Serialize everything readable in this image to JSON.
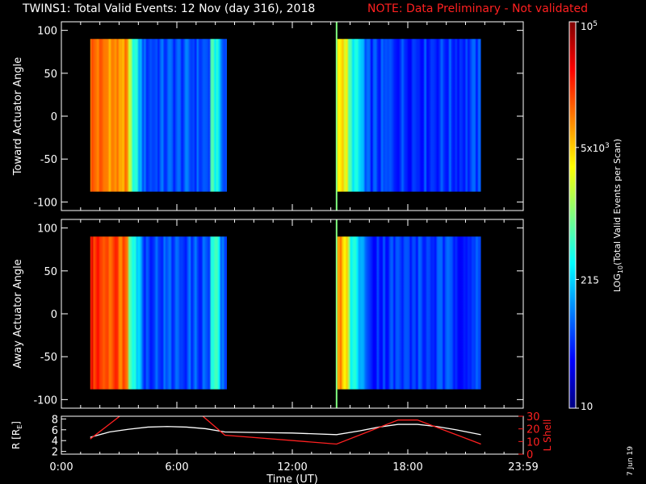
{
  "header": {
    "title": "TWINS1: Total Valid Events: 12 Nov (day 316), 2018",
    "note": "NOTE: Data Preliminary - Not validated"
  },
  "colors": {
    "background": "#000000",
    "axes": "#ffffff",
    "note": "#ff2020",
    "lshell": "#ff2020",
    "r_earth": "#ffffff",
    "marker": "#80ff80"
  },
  "date_stamp": "7 Jun 19",
  "chart_data": [
    {
      "type": "heatmap",
      "name": "toward",
      "ylabel": "Toward Actuator Angle",
      "ylim": [
        -110,
        110
      ],
      "yticks": [
        -100,
        -50,
        0,
        50,
        100
      ],
      "xlim": [
        0,
        24
      ],
      "scan_blocks": [
        {
          "x_start": 1.5,
          "x_end": 8.6,
          "y_range": [
            -88,
            90
          ]
        },
        {
          "x_start": 14.3,
          "x_end": 21.8,
          "y_range": [
            -88,
            90
          ]
        }
      ],
      "marker_time": 14.3
    },
    {
      "type": "heatmap",
      "name": "away",
      "ylabel": "Away Actuator Angle",
      "ylim": [
        -110,
        110
      ],
      "yticks": [
        -100,
        -50,
        0,
        50,
        100
      ],
      "xlim": [
        0,
        24
      ],
      "scan_blocks": [
        {
          "x_start": 1.5,
          "x_end": 8.6,
          "y_range": [
            -88,
            90
          ]
        },
        {
          "x_start": 14.3,
          "x_end": 21.8,
          "y_range": [
            -88,
            90
          ]
        }
      ],
      "marker_time": 14.3
    },
    {
      "type": "line",
      "name": "orbit",
      "xlabel": "Time (UT)",
      "xlim": [
        0,
        24
      ],
      "xticks": [
        0,
        6,
        12,
        18,
        24
      ],
      "xtick_labels": [
        "0:00",
        "6:00",
        "12:00",
        "18:00",
        "23:59"
      ],
      "y_left_label": "R [R",
      "y_left_sub": "E",
      "y_left_suffix": "]",
      "y_left_lim": [
        1.5,
        8.5
      ],
      "y_left_ticks": [
        2,
        4,
        6,
        8
      ],
      "y_right_label": "L Shell",
      "y_right_lim": [
        0,
        30
      ],
      "y_right_ticks": [
        0,
        10,
        20,
        30
      ],
      "series": [
        {
          "axis": "left",
          "x": [
            1.5,
            2.5,
            3.5,
            4.5,
            5.5,
            6.5,
            7.5,
            8.5,
            10,
            12,
            14.3,
            15.5,
            16.5,
            17.5,
            18.5,
            19.5,
            20.5,
            21.8
          ],
          "y": [
            4.6,
            5.6,
            6.1,
            6.5,
            6.6,
            6.5,
            6.2,
            5.6,
            5.5,
            5.4,
            5.1,
            5.8,
            6.5,
            7.0,
            7.0,
            6.6,
            6.0,
            5.1
          ]
        },
        {
          "axis": "right",
          "x": [
            1.5,
            3.2,
            7.2,
            8.5,
            14.3,
            17.5,
            18.5,
            21.8
          ],
          "y": [
            12,
            32,
            32,
            15,
            8,
            27,
            27,
            8
          ]
        }
      ]
    },
    {
      "type": "colorbar",
      "label": "LOG",
      "label_sub": "10",
      "label_suffix": "(Total Valid  Events per Scan)",
      "scale": "log",
      "range": [
        10,
        100000
      ],
      "ticks": [
        {
          "value": 10,
          "label": "10"
        },
        {
          "value": 215,
          "label": "215"
        },
        {
          "value": 5000,
          "label": "5x10",
          "sup": "3"
        },
        {
          "value": 100000,
          "label": "10",
          "sup": "5"
        }
      ]
    }
  ]
}
